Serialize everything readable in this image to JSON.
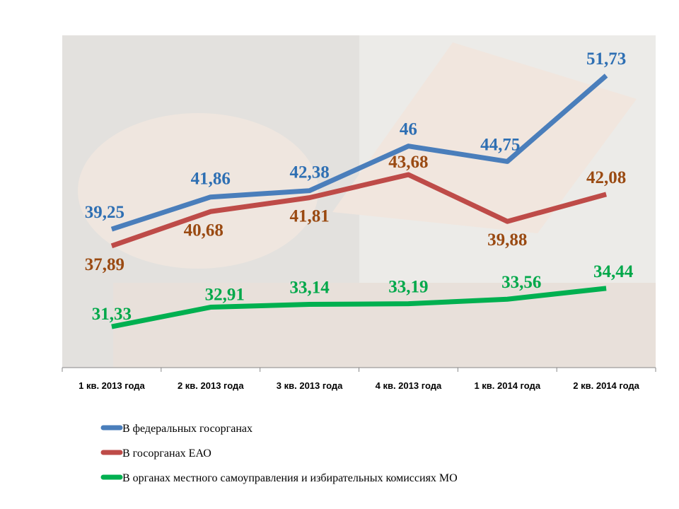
{
  "chart_data": {
    "type": "line",
    "categories": [
      "1 кв. 2013 года",
      "2 кв. 2013 года",
      "3 кв. 2013 года",
      "4 кв. 2013 года",
      "1 кв. 2014 года",
      "2 кв. 2014 года"
    ],
    "ylim": [
      28,
      55
    ],
    "series": [
      {
        "name": "В федеральных госорганах",
        "color": "#4a7ebb",
        "label_color": "#2e6fb3",
        "values": [
          39.25,
          41.86,
          42.38,
          46,
          44.75,
          51.73
        ],
        "value_labels": [
          "39,25",
          "41,86",
          "42,38",
          "46",
          "44,75",
          "51,73"
        ]
      },
      {
        "name": "В госорганах ЕАО",
        "color": "#be4b48",
        "label_color": "#9a4a12",
        "values": [
          37.89,
          40.68,
          41.81,
          43.68,
          39.88,
          42.08
        ],
        "value_labels": [
          "37,89",
          "40,68",
          "41,81",
          "43,68",
          "39,88",
          "42,08"
        ]
      },
      {
        "name": "В органах местного самоуправления  и избирательных  комиссиях МО",
        "color": "#00b050",
        "label_color": "#00a84a",
        "values": [
          31.33,
          32.91,
          33.14,
          33.19,
          33.56,
          34.44
        ],
        "value_labels": [
          "31,33",
          "32,91",
          "33,14",
          "33,19",
          "33,56",
          "34,44"
        ]
      }
    ]
  }
}
